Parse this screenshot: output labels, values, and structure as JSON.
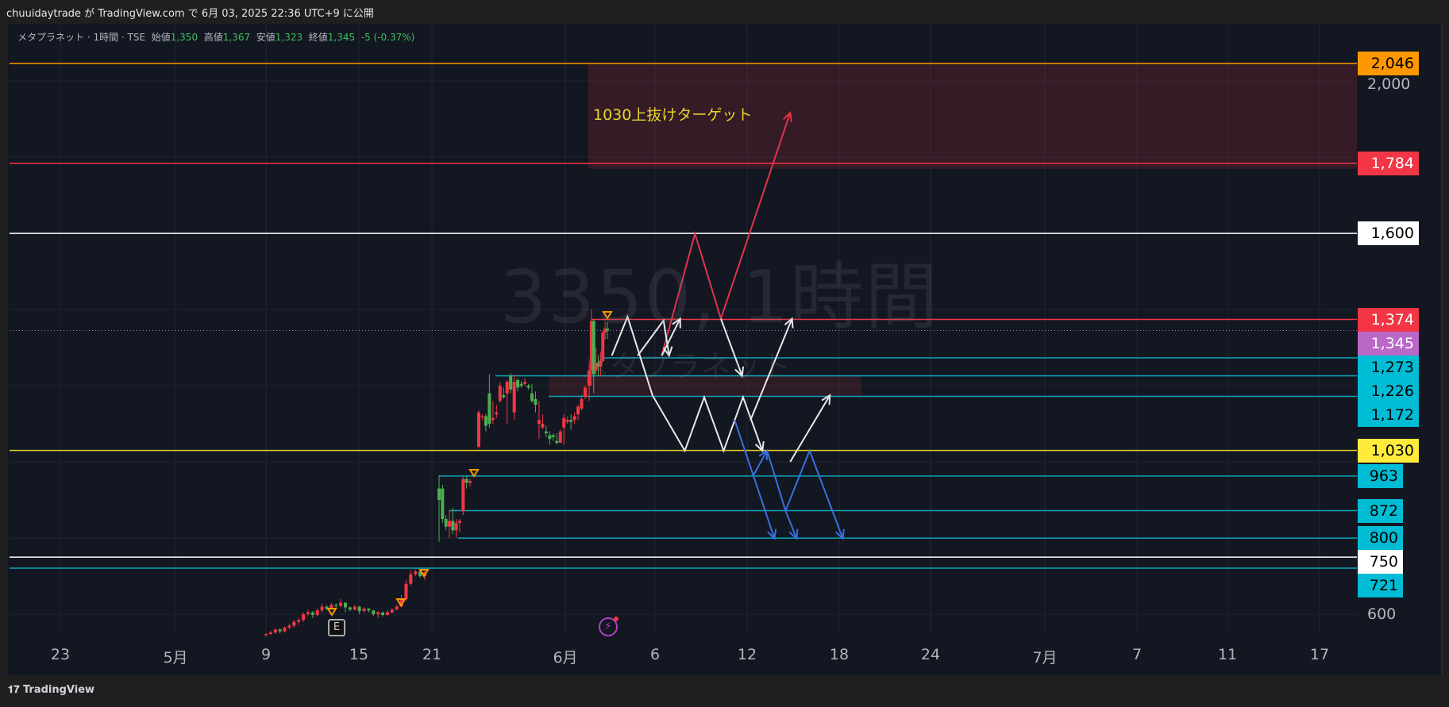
{
  "header": {
    "text": "chuuidaytrade が TradingView.com で 6月 03, 2025 22:36 UTC+9 に公開"
  },
  "legend": {
    "symbol": "メタプラネット · 1時間 · TSE",
    "open_label": "始値",
    "open": "1,350",
    "high_label": "高値",
    "high": "1,367",
    "low_label": "安値",
    "low": "1,323",
    "close_label": "終値",
    "close": "1,345",
    "change": "-5 (-0.37%)"
  },
  "watermark": {
    "line1": "3350, 1時間",
    "line2": "メタプラネット"
  },
  "annotation": {
    "text": "1030上抜けターゲット",
    "color": "#e8d52a"
  },
  "footer": {
    "brand": "TradingView"
  },
  "icons": {
    "earnings": "E",
    "earnings_icon": "earnings-badge",
    "alert_icon": "lightning-icon"
  },
  "chart_data": {
    "type": "candlestick",
    "symbol": "メタプラネット",
    "interval": "1時間",
    "exchange": "TSE",
    "y_axis": {
      "range": [
        540,
        2060
      ],
      "tick_labels": [
        "2,000",
        "600"
      ]
    },
    "x_axis": {
      "tick_labels": [
        "23",
        "5月",
        "9",
        "15",
        "21",
        "6月",
        "6",
        "12",
        "18",
        "24",
        "7月",
        "7",
        "11",
        "17"
      ]
    },
    "grid": true,
    "up_color": "#f23645",
    "down_color": "#4caf50",
    "price_levels": [
      {
        "value": 2046,
        "label": "2,046",
        "color": "#ff9800",
        "text_color": "#000000"
      },
      {
        "value": 1784,
        "label": "1,784",
        "color": "#f23645",
        "text_color": "#ffffff"
      },
      {
        "value": 1600,
        "label": "1,600",
        "color": "#ffffff",
        "text_color": "#000000"
      },
      {
        "value": 1374,
        "label": "1,374",
        "color": "#f23645",
        "text_color": "#ffffff"
      },
      {
        "value": 1345,
        "label": "1,345",
        "color": "#ba68c8",
        "text_color": "#ffffff",
        "style": "dotted"
      },
      {
        "value": 1273,
        "label": "1,273",
        "color": "#00bcd4",
        "text_color": "#000000"
      },
      {
        "value": 1226,
        "label": "1,226",
        "color": "#00bcd4",
        "text_color": "#000000"
      },
      {
        "value": 1172,
        "label": "1,172",
        "color": "#00bcd4",
        "text_color": "#000000"
      },
      {
        "value": 1030,
        "label": "1,030",
        "color": "#ffeb3b",
        "text_color": "#000000"
      },
      {
        "value": 963,
        "label": "963",
        "color": "#00bcd4",
        "text_color": "#000000"
      },
      {
        "value": 872,
        "label": "872",
        "color": "#00bcd4",
        "text_color": "#000000"
      },
      {
        "value": 800,
        "label": "800",
        "color": "#00bcd4",
        "text_color": "#000000"
      },
      {
        "value": 750,
        "label": "750",
        "color": "#ffffff",
        "text_color": "#000000"
      },
      {
        "value": 721,
        "label": "721",
        "color": "#00bcd4",
        "text_color": "#000000"
      }
    ],
    "target_zone": {
      "from": 1784,
      "to": 2046,
      "color": "#f23645"
    },
    "candle_segments": [
      [
        [
          545,
          550,
          540,
          548
        ],
        [
          548,
          556,
          545,
          552
        ],
        [
          552,
          562,
          548,
          560
        ],
        [
          560,
          563,
          550,
          555
        ],
        [
          555,
          568,
          552,
          565
        ],
        [
          565,
          575,
          560,
          570
        ],
        [
          570,
          585,
          565,
          580
        ],
        [
          580,
          590,
          572,
          585
        ],
        [
          585,
          605,
          580,
          600
        ],
        [
          600,
          612,
          596,
          605
        ],
        [
          605,
          608,
          590,
          598
        ],
        [
          598,
          615,
          595,
          610
        ],
        [
          610,
          628,
          605,
          620
        ],
        [
          620,
          624,
          610,
          615
        ],
        [
          615,
          630,
          612,
          625
        ],
        [
          625,
          628,
          616,
          622
        ],
        [
          622,
          640,
          618,
          630
        ],
        [
          630,
          632,
          605,
          618
        ],
        [
          618,
          620,
          608,
          612
        ],
        [
          612,
          625,
          610,
          620
        ],
        [
          620,
          622,
          600,
          608
        ],
        [
          608,
          618,
          605,
          615
        ],
        [
          615,
          616,
          605,
          610
        ],
        [
          610,
          612,
          595,
          600
        ],
        [
          600,
          608,
          590,
          605
        ],
        [
          605,
          606,
          594,
          598
        ],
        [
          598,
          610,
          596,
          605
        ],
        [
          605,
          616,
          602,
          612
        ],
        [
          612,
          625,
          610,
          620
        ],
        [
          620,
          650,
          618,
          640
        ],
        [
          640,
          690,
          636,
          680
        ],
        [
          680,
          715,
          676,
          705
        ],
        [
          705,
          718,
          700,
          712
        ],
        [
          712,
          714,
          695,
          700
        ],
        [
          700,
          715,
          690,
          710
        ]
      ],
      [
        [
          930,
          965,
          790,
          900
        ],
        [
          930,
          940,
          840,
          850
        ],
        [
          850,
          860,
          820,
          830
        ],
        [
          830,
          875,
          800,
          845
        ],
        [
          845,
          880,
          810,
          820
        ],
        [
          820,
          850,
          800,
          840
        ],
        [
          840,
          850,
          815,
          845
        ],
        [
          870,
          963,
          860,
          955
        ],
        [
          955,
          963,
          930,
          945
        ],
        [
          945,
          955,
          935,
          950
        ]
      ],
      [
        [
          1040,
          1135,
          1035,
          1130
        ],
        [
          1120,
          1125,
          1110,
          1120
        ],
        [
          1120,
          1125,
          1080,
          1095
        ],
        [
          1180,
          1230,
          1090,
          1100
        ],
        [
          1110,
          1160,
          1100,
          1115
        ],
        [
          1125,
          1150,
          1115,
          1130
        ],
        [
          1160,
          1210,
          1155,
          1200
        ],
        [
          1175,
          1195,
          1165,
          1170
        ],
        [
          1180,
          1215,
          1100,
          1210
        ],
        [
          1225,
          1232,
          1180,
          1190
        ],
        [
          1130,
          1230,
          1110,
          1210
        ],
        [
          1215,
          1220,
          1185,
          1195
        ],
        [
          1205,
          1212,
          1195,
          1200
        ],
        [
          1205,
          1220,
          1200,
          1210
        ],
        [
          1200,
          1205,
          1190,
          1195
        ],
        [
          1180,
          1205,
          1155,
          1160
        ],
        [
          1165,
          1185,
          1130,
          1150
        ],
        [
          1100,
          1160,
          1060,
          1110
        ],
        [
          1090,
          1125,
          1085,
          1100
        ],
        [
          1080,
          1095,
          1065,
          1075
        ],
        [
          1070,
          1080,
          1045,
          1060
        ],
        [
          1070,
          1075,
          1055,
          1065
        ],
        [
          1055,
          1075,
          1045,
          1050
        ],
        [
          1050,
          1085,
          1050,
          1080
        ],
        [
          1090,
          1125,
          1045,
          1115
        ],
        [
          1105,
          1120,
          1100,
          1110
        ],
        [
          1110,
          1125,
          1085,
          1105
        ],
        [
          1110,
          1130,
          1100,
          1120
        ],
        [
          1125,
          1150,
          1110,
          1145
        ],
        [
          1140,
          1175,
          1135,
          1165
        ],
        [
          1170,
          1200,
          1165,
          1195
        ]
      ],
      [
        [
          1200,
          1260,
          1160,
          1240
        ],
        [
          1240,
          1400,
          1200,
          1370
        ],
        [
          1370,
          1374,
          1180,
          1230
        ],
        [
          1240,
          1300,
          1230,
          1260
        ],
        [
          1260,
          1280,
          1225,
          1250
        ],
        [
          1250,
          1290,
          1225,
          1265
        ],
        [
          1265,
          1345,
          1260,
          1340
        ],
        [
          1340,
          1367,
          1320,
          1350
        ],
        [
          1350,
          1367,
          1323,
          1345
        ]
      ]
    ]
  }
}
